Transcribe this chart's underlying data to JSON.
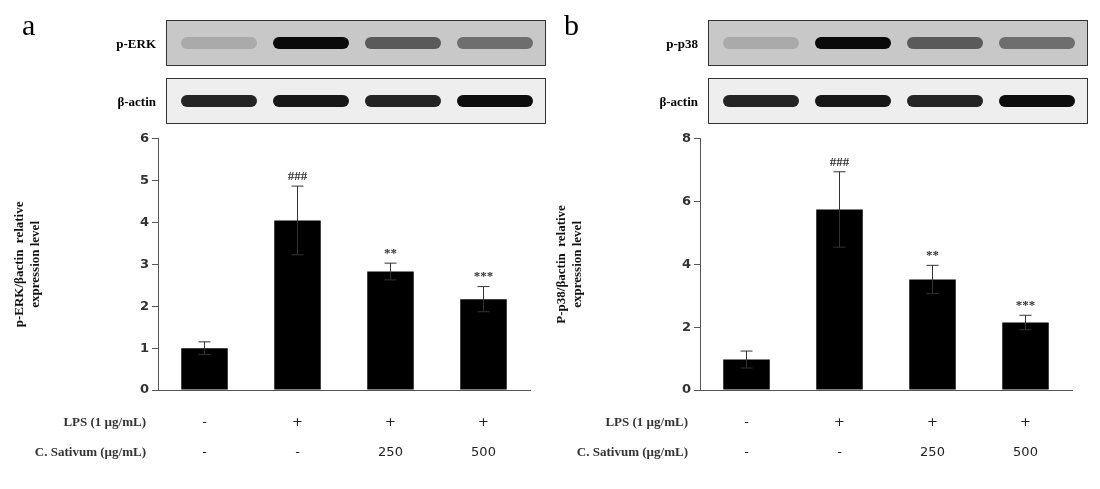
{
  "chart_data": [
    {
      "type": "bar",
      "title": "a",
      "categories": [
        "-\n-",
        "+\n-",
        "+\n250",
        "+\n500"
      ],
      "values": [
        1.0,
        4.05,
        2.83,
        2.17
      ],
      "errors": [
        0.15,
        0.82,
        0.2,
        0.3
      ],
      "color": "#000000",
      "ylim": [
        0,
        6
      ],
      "yticks": [
        0,
        1,
        2,
        3,
        4,
        5,
        6
      ],
      "ylabel": "p-ERK/βactin  relative\nexpression level",
      "annotations": [
        "p-ERK",
        "β-actin",
        "LPS (1 µg/mL)",
        "C. Sativum (µg/mL)",
        {
          "text": "###",
          "x": "+\n-",
          "y": 4.87
        },
        {
          "text": "**",
          "x": "+\n250",
          "y": 3.03
        },
        {
          "text": "***",
          "x": "+\n500",
          "y": 2.47
        }
      ]
    },
    {
      "type": "bar",
      "title": "b",
      "categories": [
        "-\n-",
        "+\n-",
        "+\n250",
        "+\n500"
      ],
      "values": [
        0.97,
        5.75,
        3.52,
        2.15
      ],
      "errors": [
        0.27,
        1.2,
        0.45,
        0.23
      ],
      "color": "#000000",
      "ylim": [
        0,
        8
      ],
      "yticks": [
        0,
        2,
        4,
        6,
        8
      ],
      "ylabel": "P-p38/βactin  relative\nexpression level",
      "annotations": [
        "p-p38",
        "β-actin",
        "LPS (1 µg/mL)",
        "C. Sativum (µg/mL)",
        {
          "text": "###",
          "x": "+\n-",
          "y": 6.95
        },
        {
          "text": "**",
          "x": "+\n250",
          "y": 3.97
        },
        {
          "text": "***",
          "x": "+\n500",
          "y": 2.38
        }
      ]
    }
  ]
}
